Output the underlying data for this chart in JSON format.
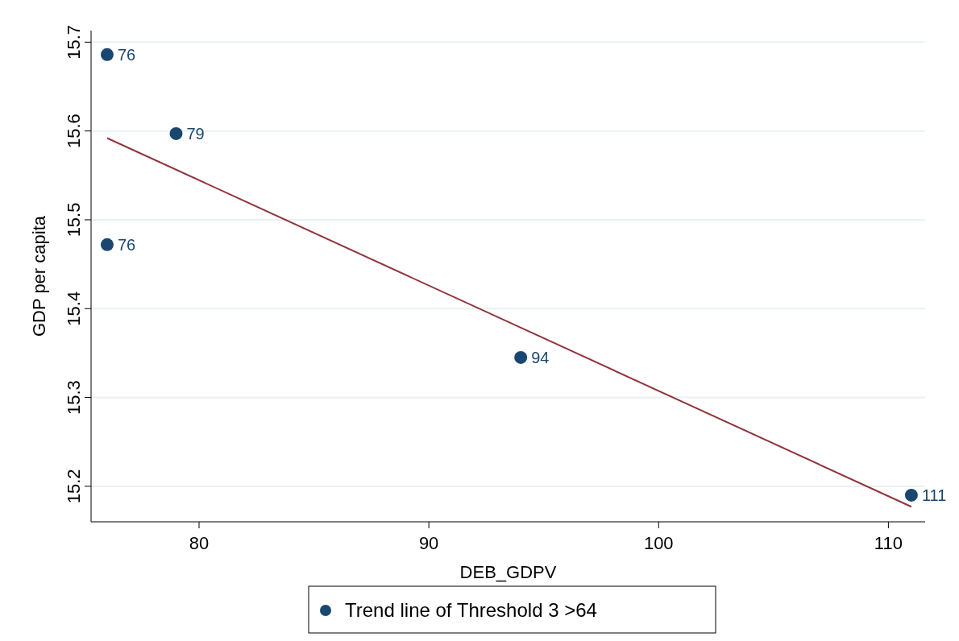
{
  "chart_data": {
    "type": "scatter",
    "xlabel": "DEB_GDPV",
    "ylabel": "GDP per capita",
    "xlim": [
      75.3,
      111.6
    ],
    "xticks": [
      80,
      90,
      100,
      110
    ],
    "ylim": [
      15.16,
      15.713
    ],
    "yticks": [
      15.2,
      15.3,
      15.4,
      15.5,
      15.6,
      15.7
    ],
    "grid": "y",
    "legend": "bottom",
    "series": [
      {
        "name": "Trend line of Threshold 3 >64",
        "marker": "circle",
        "color": "#1a476f",
        "x": [
          76,
          79,
          76,
          94,
          111
        ],
        "values": [
          15.686,
          15.597,
          15.472,
          15.345,
          15.19
        ]
      },
      {
        "type": "line",
        "marker": "none",
        "color": "#90353b",
        "x": [
          76,
          111
        ],
        "values": [
          15.592,
          15.177
        ]
      }
    ],
    "annotations": [
      {
        "text": "76",
        "x": 76,
        "y": 15.686
      },
      {
        "text": "79",
        "x": 79,
        "y": 15.597
      },
      {
        "text": "76",
        "x": 76,
        "y": 15.472
      },
      {
        "text": "94",
        "x": 94,
        "y": 15.345
      },
      {
        "text": "111",
        "x": 111,
        "y": 15.19
      }
    ]
  }
}
